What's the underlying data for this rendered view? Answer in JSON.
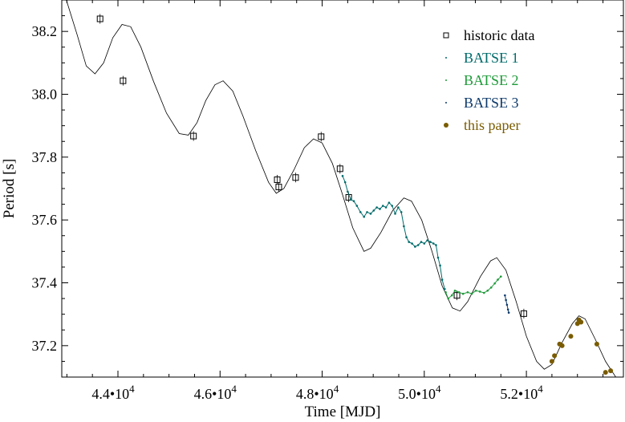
{
  "chart_data": {
    "type": "scatter",
    "xlabel": "Time [MJD]",
    "ylabel": "Period [s]",
    "xlim": [
      42900,
      53900
    ],
    "ylim": [
      37.1,
      38.3
    ],
    "x_ticks": [
      {
        "value": 44000,
        "label": "4.4•10",
        "exp": "4"
      },
      {
        "value": 46000,
        "label": "4.6•10",
        "exp": "4"
      },
      {
        "value": 48000,
        "label": "4.8•10",
        "exp": "4"
      },
      {
        "value": 50000,
        "label": "5.0•10",
        "exp": "4"
      },
      {
        "value": 52000,
        "label": "5.2•10",
        "exp": "4"
      }
    ],
    "y_ticks": [
      {
        "value": 37.2,
        "label": "37.2"
      },
      {
        "value": 37.4,
        "label": "37.4"
      },
      {
        "value": 37.6,
        "label": "37.6"
      },
      {
        "value": 37.8,
        "label": "37.8"
      },
      {
        "value": 38.0,
        "label": "38.0"
      },
      {
        "value": 38.2,
        "label": "38.2"
      }
    ],
    "grid": false,
    "legend_position": "top-right",
    "series": [
      {
        "name": "historic data",
        "marker": "square",
        "color": "#000000",
        "points": [
          [
            43650,
            38.24
          ],
          [
            44100,
            38.043
          ],
          [
            45480,
            37.867
          ],
          [
            47120,
            37.728
          ],
          [
            47150,
            37.705
          ],
          [
            47480,
            37.735
          ],
          [
            47980,
            37.865
          ],
          [
            48350,
            37.763
          ],
          [
            48520,
            37.672
          ],
          [
            50640,
            37.36
          ],
          [
            51950,
            37.302
          ]
        ]
      },
      {
        "name": "BATSE 1",
        "marker": "dot-small",
        "color": "#006b6b",
        "points": [
          [
            48400,
            37.74
          ],
          [
            48450,
            37.72
          ],
          [
            48500,
            37.69
          ],
          [
            48560,
            37.665
          ],
          [
            48620,
            37.66
          ],
          [
            48680,
            37.645
          ],
          [
            48750,
            37.625
          ],
          [
            48820,
            37.61
          ],
          [
            48880,
            37.625
          ],
          [
            48950,
            37.62
          ],
          [
            49010,
            37.63
          ],
          [
            49070,
            37.64
          ],
          [
            49130,
            37.635
          ],
          [
            49190,
            37.645
          ],
          [
            49250,
            37.64
          ],
          [
            49310,
            37.655
          ],
          [
            49370,
            37.645
          ],
          [
            49430,
            37.62
          ],
          [
            49490,
            37.64
          ],
          [
            49550,
            37.625
          ],
          [
            49600,
            37.58
          ],
          [
            49650,
            37.545
          ],
          [
            49700,
            37.53
          ],
          [
            49760,
            37.525
          ],
          [
            49820,
            37.515
          ],
          [
            49880,
            37.52
          ],
          [
            49940,
            37.53
          ],
          [
            50000,
            37.525
          ],
          [
            50060,
            37.535
          ],
          [
            50120,
            37.53
          ],
          [
            50180,
            37.525
          ],
          [
            50230,
            37.52
          ],
          [
            50270,
            37.48
          ],
          [
            50310,
            37.455
          ],
          [
            50350,
            37.41
          ],
          [
            50400,
            37.38
          ]
        ]
      },
      {
        "name": "BATSE 2",
        "marker": "dot-small",
        "color": "#1f9b3a",
        "points": [
          [
            50420,
            37.37
          ],
          [
            50470,
            37.35
          ],
          [
            50540,
            37.36
          ],
          [
            50600,
            37.375
          ],
          [
            50680,
            37.37
          ],
          [
            50760,
            37.365
          ],
          [
            50850,
            37.37
          ],
          [
            50930,
            37.365
          ],
          [
            51010,
            37.375
          ],
          [
            51090,
            37.372
          ],
          [
            51170,
            37.368
          ],
          [
            51240,
            37.375
          ],
          [
            51310,
            37.385
          ],
          [
            51380,
            37.398
          ],
          [
            51440,
            37.41
          ],
          [
            51500,
            37.42
          ]
        ]
      },
      {
        "name": "BATSE 3",
        "marker": "dot-small",
        "color": "#0e3a6b",
        "points": [
          [
            51580,
            37.36
          ],
          [
            51600,
            37.345
          ],
          [
            51620,
            37.33
          ],
          [
            51640,
            37.315
          ],
          [
            51655,
            37.305
          ]
        ]
      },
      {
        "name": "this paper",
        "marker": "dot",
        "color": "#7a5c00",
        "points": [
          [
            52500,
            37.15
          ],
          [
            52550,
            37.168
          ],
          [
            52650,
            37.205
          ],
          [
            52700,
            37.2
          ],
          [
            52870,
            37.23
          ],
          [
            53000,
            37.27
          ],
          [
            53030,
            37.282
          ],
          [
            53070,
            37.275
          ],
          [
            53380,
            37.205
          ],
          [
            53550,
            37.115
          ],
          [
            53650,
            37.12
          ]
        ]
      }
    ],
    "model_curve": {
      "name": "",
      "color": "#000000",
      "points": [
        [
          42990,
          38.3
        ],
        [
          43200,
          38.19
        ],
        [
          43380,
          38.09
        ],
        [
          43550,
          38.065
        ],
        [
          43720,
          38.1
        ],
        [
          43900,
          38.18
        ],
        [
          44080,
          38.222
        ],
        [
          44250,
          38.215
        ],
        [
          44450,
          38.15
        ],
        [
          44700,
          38.04
        ],
        [
          44950,
          37.94
        ],
        [
          45200,
          37.875
        ],
        [
          45380,
          37.87
        ],
        [
          45550,
          37.91
        ],
        [
          45720,
          37.98
        ],
        [
          45900,
          38.03
        ],
        [
          46060,
          38.043
        ],
        [
          46250,
          38.01
        ],
        [
          46450,
          37.93
        ],
        [
          46700,
          37.82
        ],
        [
          46950,
          37.72
        ],
        [
          47100,
          37.685
        ],
        [
          47250,
          37.7
        ],
        [
          47450,
          37.76
        ],
        [
          47650,
          37.83
        ],
        [
          47830,
          37.858
        ],
        [
          48000,
          37.845
        ],
        [
          48200,
          37.78
        ],
        [
          48400,
          37.68
        ],
        [
          48600,
          37.575
        ],
        [
          48820,
          37.5
        ],
        [
          48950,
          37.51
        ],
        [
          49150,
          37.56
        ],
        [
          49380,
          37.63
        ],
        [
          49600,
          37.67
        ],
        [
          49750,
          37.66
        ],
        [
          49950,
          37.6
        ],
        [
          50150,
          37.5
        ],
        [
          50350,
          37.39
        ],
        [
          50550,
          37.32
        ],
        [
          50700,
          37.31
        ],
        [
          50850,
          37.34
        ],
        [
          51100,
          37.42
        ],
        [
          51300,
          37.47
        ],
        [
          51420,
          37.48
        ],
        [
          51600,
          37.44
        ],
        [
          51800,
          37.34
        ],
        [
          52000,
          37.23
        ],
        [
          52200,
          37.15
        ],
        [
          52350,
          37.125
        ],
        [
          52500,
          37.14
        ],
        [
          52700,
          37.21
        ],
        [
          52900,
          37.27
        ],
        [
          53030,
          37.295
        ],
        [
          53150,
          37.285
        ],
        [
          53350,
          37.22
        ],
        [
          53550,
          37.15
        ],
        [
          53750,
          37.1
        ]
      ]
    }
  }
}
